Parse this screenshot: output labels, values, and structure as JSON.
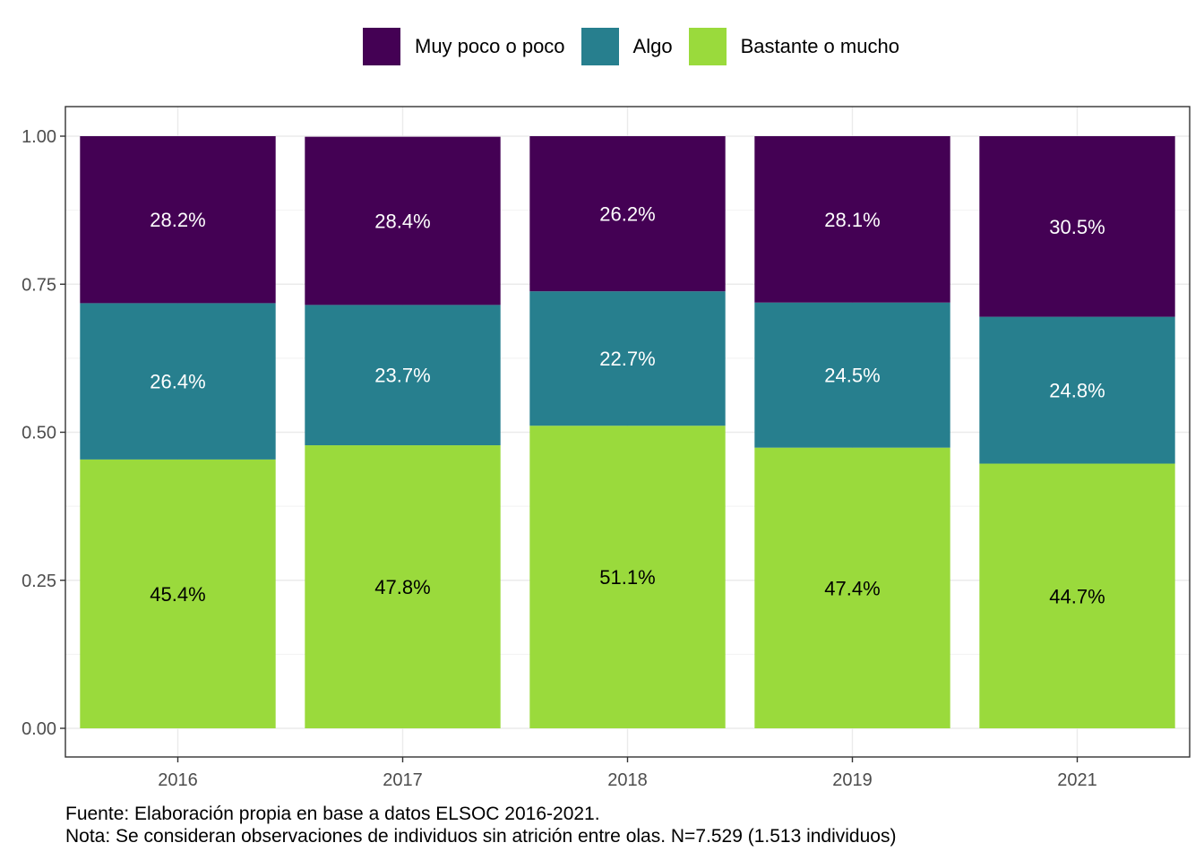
{
  "chart_data": {
    "type": "bar",
    "stacked": true,
    "categories": [
      "2016",
      "2017",
      "2018",
      "2019",
      "2021"
    ],
    "series": [
      {
        "name": "Bastante o mucho",
        "color": "#9ADA3C",
        "label_color": "#000000",
        "values": [
          0.454,
          0.478,
          0.511,
          0.474,
          0.447
        ],
        "labels": [
          "45.4%",
          "47.8%",
          "51.1%",
          "47.4%",
          "44.7%"
        ]
      },
      {
        "name": "Algo",
        "color": "#277F8E",
        "label_color": "#ffffff",
        "values": [
          0.264,
          0.237,
          0.227,
          0.245,
          0.248
        ],
        "labels": [
          "26.4%",
          "23.7%",
          "22.7%",
          "24.5%",
          "24.8%"
        ]
      },
      {
        "name": "Muy poco o poco",
        "color": "#440154",
        "label_color": "#ffffff",
        "values": [
          0.282,
          0.284,
          0.262,
          0.281,
          0.305
        ],
        "labels": [
          "28.2%",
          "28.4%",
          "26.2%",
          "28.1%",
          "30.5%"
        ]
      }
    ],
    "legend_order": [
      "Muy poco o poco",
      "Algo",
      "Bastante o mucho"
    ],
    "legend_position": "top",
    "ylim": [
      0,
      1
    ],
    "yticks": [
      "0.00",
      "0.25",
      "0.50",
      "0.75",
      "1.00"
    ],
    "ytick_values": [
      0,
      0.25,
      0.5,
      0.75,
      1
    ],
    "grid": true,
    "xlabel": "",
    "ylabel": ""
  },
  "caption": {
    "source": "Fuente: Elaboración propia en base a datos ELSOC 2016-2021.",
    "note": "Nota: Se consideran observaciones de individuos sin atrición entre olas. N=7.529 (1.513 individuos)"
  }
}
